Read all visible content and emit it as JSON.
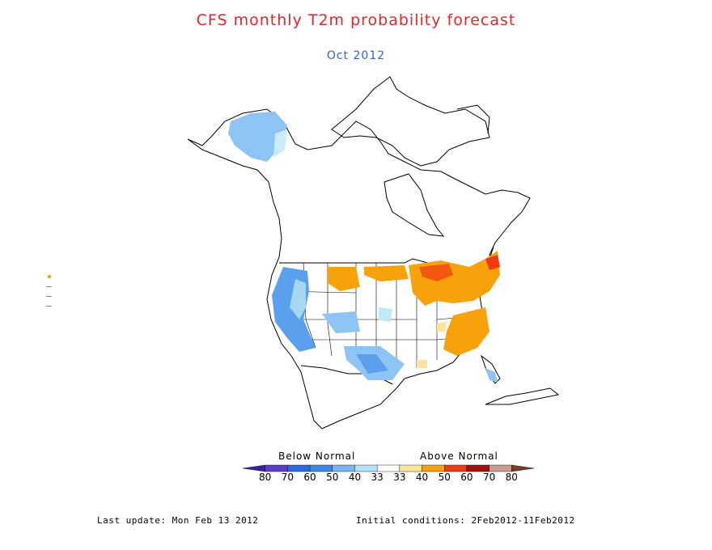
{
  "title": "CFS monthly T2m probability forecast",
  "subtitle": "Oct 2012",
  "legend": {
    "below_label": "Below Normal",
    "above_label": "Above Normal",
    "ticks": [
      "80",
      "70",
      "60",
      "50",
      "40",
      "33",
      "33",
      "40",
      "50",
      "60",
      "70",
      "80"
    ],
    "colors": [
      "#3b1f9f",
      "#5b3ccc",
      "#2a6be0",
      "#3f8ae8",
      "#78b6f2",
      "#b4e2f7",
      "#ffffff",
      "#fee49a",
      "#f7a20a",
      "#f43a12",
      "#a60d0d",
      "#c99a8d",
      "#7a3b23"
    ]
  },
  "footer": {
    "last_update": "Last update: Mon Feb 13 2012",
    "initial_conditions": "Initial conditions: 2Feb2012-11Feb2012"
  }
}
